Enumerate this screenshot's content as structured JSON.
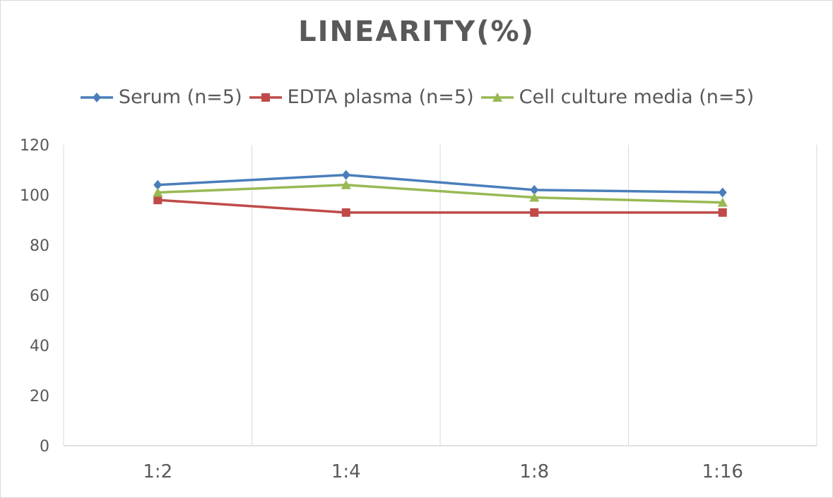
{
  "chart_data": {
    "type": "line",
    "title": "LINEARITY(%)",
    "categories": [
      "1:2",
      "1:4",
      "1:8",
      "1:16"
    ],
    "series": [
      {
        "name": "Serum (n=5)",
        "values": [
          104,
          108,
          102,
          101
        ],
        "color": "#4a7ebb",
        "marker": "diamond"
      },
      {
        "name": "EDTA plasma (n=5)",
        "values": [
          98,
          93,
          93,
          93
        ],
        "color": "#be4b48",
        "marker": "square"
      },
      {
        "name": "Cell culture media (n=5)",
        "values": [
          101,
          104,
          99,
          97
        ],
        "color": "#98b954",
        "marker": "triangle"
      }
    ],
    "ylim": [
      0,
      120
    ],
    "yticks": [
      0,
      20,
      40,
      60,
      80,
      100,
      120
    ],
    "xlabel": "",
    "ylabel": "",
    "grid": "vertical",
    "legend": "top"
  }
}
